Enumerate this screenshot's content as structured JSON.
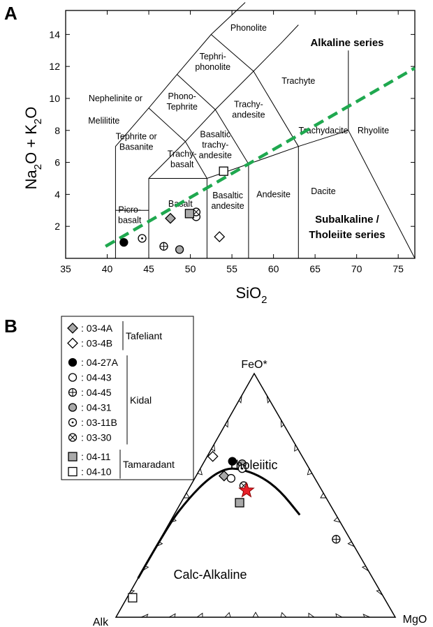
{
  "panel_a": {
    "letter": "A",
    "xlabel": "SiO",
    "xlabel_sub": "2",
    "ylabel_parts": [
      "Na",
      "2",
      "O + K",
      "2",
      "O"
    ],
    "series_label_top": "Alkaline series",
    "series_label_bottom": [
      "Subalkaline /",
      "Tholeiite series"
    ],
    "fields": [
      {
        "lines": [
          "Phonolite"
        ],
        "x": 57,
        "y": 14.4
      },
      {
        "lines": [
          "Tephri-",
          "phonolite"
        ],
        "x": 52.7,
        "y": 12.3
      },
      {
        "lines": [
          "Trachyte"
        ],
        "x": 63,
        "y": 11.1
      },
      {
        "lines": [
          "Nephelinite or"
        ],
        "x": 41,
        "y": 10.0
      },
      {
        "lines": [
          "Melilitite"
        ],
        "x": 39.6,
        "y": 8.6
      },
      {
        "lines": [
          "Phono-",
          "Tephrite"
        ],
        "x": 49,
        "y": 9.8
      },
      {
        "lines": [
          "Trachy-",
          "andesite"
        ],
        "x": 57,
        "y": 9.3
      },
      {
        "lines": [
          "Basaltic",
          "trachy-",
          "andesite"
        ],
        "x": 53,
        "y": 7.1
      },
      {
        "lines": [
          "Tephrite or",
          "Basanite"
        ],
        "x": 43.5,
        "y": 7.3
      },
      {
        "lines": [
          "Trachy-",
          "basalt"
        ],
        "x": 49,
        "y": 6.2
      },
      {
        "lines": [
          "Trachydacite"
        ],
        "x": 66,
        "y": 8.0
      },
      {
        "lines": [
          "Rhyolite"
        ],
        "x": 72,
        "y": 8.0
      },
      {
        "lines": [
          "Dacite"
        ],
        "x": 66,
        "y": 4.2
      },
      {
        "lines": [
          "Andesite"
        ],
        "x": 60,
        "y": 4.0
      },
      {
        "lines": [
          "Basaltic",
          "andesite"
        ],
        "x": 54.5,
        "y": 3.6
      },
      {
        "lines": [
          "Basalt"
        ],
        "x": 48.8,
        "y": 3.4
      },
      {
        "lines": [
          "Picro-",
          "basalt"
        ],
        "x": 42.7,
        "y": 2.7
      }
    ]
  },
  "panel_b": {
    "letter": "B",
    "apex_top": "FeO*",
    "apex_left": "Alk",
    "apex_right": "MgO",
    "region_upper": "Tholeiitic",
    "region_lower": "Calc-Alkaline",
    "legend": {
      "entries": [
        {
          "marker": "diamond",
          "fill": "#a9a9a9",
          "label": ": 03-4A"
        },
        {
          "marker": "diamond",
          "fill": "#ffffff",
          "label": ": 03-4B"
        },
        {
          "marker": "circle",
          "fill": "#000000",
          "label": ": 04-27A"
        },
        {
          "marker": "circle",
          "fill": "#ffffff",
          "label": ": 04-43"
        },
        {
          "marker": "circle-plus",
          "fill": "#ffffff",
          "label": ": 04-45"
        },
        {
          "marker": "circle",
          "fill": "#a9a9a9",
          "label": ": 04-31"
        },
        {
          "marker": "circle-dot",
          "fill": "#ffffff",
          "label": ": 03-11B"
        },
        {
          "marker": "circle-x",
          "fill": "#ffffff",
          "label": ": 03-30"
        },
        {
          "marker": "square",
          "fill": "#a9a9a9",
          "label": ": 04-11"
        },
        {
          "marker": "square",
          "fill": "#ffffff",
          "label": ": 04-10"
        }
      ],
      "groups": [
        {
          "name": "Tafeliant",
          "first": 0,
          "last": 1
        },
        {
          "name": "Kidal",
          "first": 2,
          "last": 7
        },
        {
          "name": "Tamaradant",
          "first": 8,
          "last": 9
        }
      ]
    }
  },
  "colors": {
    "boundary": "#000000",
    "dashed_line": "#1fa84f",
    "grey_marker": "#a9a9a9",
    "star": "#e8202a"
  },
  "chart_data": [
    {
      "type": "scatter",
      "title": "",
      "xlabel": "SiO2",
      "ylabel": "Na2O + K2O",
      "xlim": [
        35,
        77
      ],
      "ylim": [
        0,
        15.5
      ],
      "xticks": [
        35,
        40,
        45,
        50,
        55,
        60,
        65,
        70,
        75
      ],
      "yticks": [
        2,
        4,
        6,
        8,
        10,
        12,
        14
      ],
      "grid": false,
      "dividing_line": {
        "style": "dashed",
        "color": "#1fa84f",
        "x": [
          39.8,
          77
        ],
        "y": [
          0.75,
          11.9
        ]
      },
      "series": [
        {
          "name": "03-4A",
          "marker": "diamond",
          "fill": "#a9a9a9",
          "points": [
            [
              47.6,
              2.5
            ]
          ]
        },
        {
          "name": "03-4B",
          "marker": "diamond",
          "fill": "#ffffff",
          "points": [
            [
              53.5,
              1.35
            ]
          ]
        },
        {
          "name": "04-27A",
          "marker": "circle",
          "fill": "#000000",
          "points": [
            [
              42.0,
              1.0
            ]
          ]
        },
        {
          "name": "04-43",
          "marker": "circle",
          "fill": "#ffffff",
          "points": [
            [
              50.7,
              2.6
            ]
          ]
        },
        {
          "name": "04-45",
          "marker": "circle-plus",
          "fill": "#ffffff",
          "points": [
            [
              46.8,
              0.75
            ]
          ]
        },
        {
          "name": "04-31",
          "marker": "circle",
          "fill": "#a9a9a9",
          "points": [
            [
              48.7,
              0.55
            ]
          ]
        },
        {
          "name": "03-11B",
          "marker": "circle-dot",
          "fill": "#ffffff",
          "points": [
            [
              44.2,
              1.25
            ]
          ]
        },
        {
          "name": "03-30",
          "marker": "circle-x",
          "fill": "#ffffff",
          "points": [
            [
              50.7,
              2.9
            ]
          ]
        },
        {
          "name": "04-11",
          "marker": "square",
          "fill": "#a9a9a9",
          "points": [
            [
              49.9,
              2.8
            ]
          ]
        },
        {
          "name": "04-10",
          "marker": "square",
          "fill": "#ffffff",
          "points": [
            [
              54.0,
              5.45
            ]
          ]
        }
      ]
    },
    {
      "type": "scatter",
      "title": "",
      "components": [
        "Alk",
        "FeO*",
        "MgO"
      ],
      "boundary_curve": [
        [
          0.84,
          0.16,
          0.0
        ],
        [
          0.62,
          0.38,
          0.0
        ],
        [
          0.49,
          0.49,
          0.02
        ],
        [
          0.38,
          0.57,
          0.05
        ],
        [
          0.3,
          0.61,
          0.09
        ],
        [
          0.25,
          0.61,
          0.14
        ],
        [
          0.19,
          0.58,
          0.23
        ],
        [
          0.15,
          0.52,
          0.33
        ],
        [
          0.13,
          0.42,
          0.45
        ]
      ],
      "series": [
        {
          "name": "03-4A",
          "marker": "diamond",
          "fill": "#a9a9a9",
          "points": [
            [
              0.32,
              0.58,
              0.1
            ]
          ]
        },
        {
          "name": "03-4B",
          "marker": "diamond",
          "fill": "#ffffff",
          "points": [
            [
              0.32,
              0.66,
              0.02
            ]
          ]
        },
        {
          "name": "04-27A",
          "marker": "circle",
          "fill": "#000000",
          "points": [
            [
              0.26,
              0.64,
              0.1
            ]
          ]
        },
        {
          "name": "04-43",
          "marker": "circle",
          "fill": "#ffffff",
          "points": [
            [
              0.3,
              0.57,
              0.13
            ]
          ]
        },
        {
          "name": "04-45",
          "marker": "circle-plus",
          "fill": "#ffffff",
          "points": [
            [
              0.05,
              0.32,
              0.63
            ]
          ]
        },
        {
          "name": "04-31",
          "marker": "circle",
          "fill": "#a9a9a9",
          "points": [
            [
              0.23,
              0.63,
              0.14
            ]
          ]
        },
        {
          "name": "03-11B",
          "marker": "circle-dot",
          "fill": "#ffffff",
          "points": [
            [
              0.24,
              0.61,
              0.15
            ]
          ]
        },
        {
          "name": "03-30",
          "marker": "circle-x",
          "fill": "#ffffff",
          "points": [
            [
              0.27,
              0.54,
              0.19
            ]
          ]
        },
        {
          "name": "04-11",
          "marker": "square",
          "fill": "#a9a9a9",
          "points": [
            [
              0.32,
              0.47,
              0.21
            ]
          ]
        },
        {
          "name": "04-10",
          "marker": "square",
          "fill": "#ffffff",
          "points": [
            [
              0.9,
              0.08,
              0.02
            ]
          ]
        },
        {
          "name": "",
          "marker": "star",
          "fill": "#e8202a",
          "points": [
            [
              0.27,
              0.52,
              0.21
            ]
          ]
        }
      ]
    }
  ]
}
